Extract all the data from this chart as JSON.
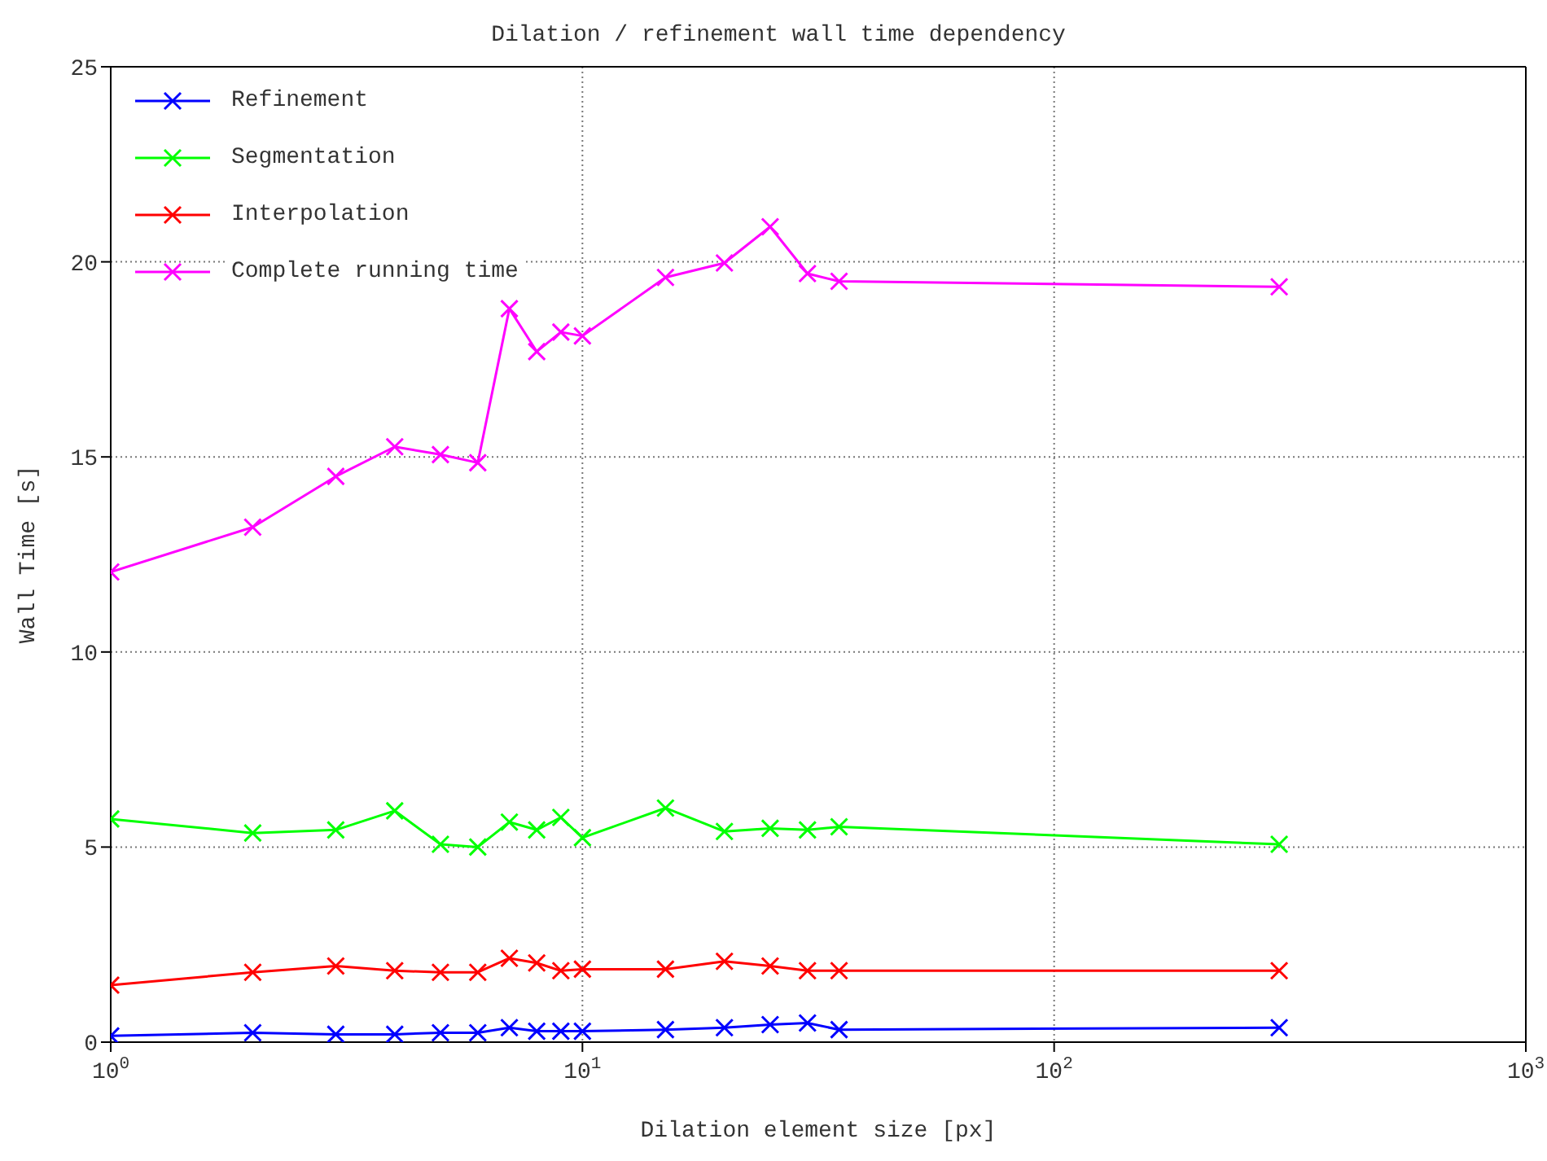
{
  "chart_data": {
    "type": "line",
    "title": "Dilation / refinement wall time dependency",
    "xlabel": "Dilation element size [px]",
    "ylabel": "Wall Time [s]",
    "log": "x",
    "x": [
      1,
      2,
      3,
      4,
      5,
      6,
      7,
      8,
      9,
      10,
      15,
      20,
      25,
      30,
      35,
      300
    ],
    "series": [
      {
        "name": "Refinement",
        "color": "#0000ff",
        "values": [
          0.16,
          0.24,
          0.2,
          0.2,
          0.24,
          0.24,
          0.37,
          0.28,
          0.28,
          0.28,
          0.32,
          0.37,
          0.45,
          0.49,
          0.32,
          0.37
        ]
      },
      {
        "name": "Segmentation",
        "color": "#00ff00",
        "values": [
          5.72,
          5.36,
          5.44,
          5.93,
          5.07,
          5.0,
          5.64,
          5.44,
          5.76,
          5.24,
          6.0,
          5.4,
          5.48,
          5.44,
          5.52,
          5.07
        ]
      },
      {
        "name": "Interpolation",
        "color": "#ff0000",
        "values": [
          1.46,
          1.79,
          1.95,
          1.83,
          1.79,
          1.79,
          2.15,
          2.03,
          1.83,
          1.87,
          1.87,
          2.07,
          1.95,
          1.83,
          1.83,
          1.83
        ]
      },
      {
        "name": "Complete running time",
        "color": "#ff00ff",
        "values": [
          12.05,
          13.2,
          14.5,
          15.26,
          15.06,
          14.85,
          18.8,
          17.7,
          18.2,
          18.1,
          19.6,
          19.97,
          20.9,
          19.7,
          19.5,
          19.36
        ]
      }
    ],
    "xlim": [
      1,
      1000
    ],
    "xticks": [
      {
        "value": 1,
        "label": "10$^{0}$"
      },
      {
        "value": 10,
        "label": "10$^{1}$"
      },
      {
        "value": 100,
        "label": "10$^{2}$"
      },
      {
        "value": 1000,
        "label": "10$^{3}$"
      }
    ],
    "ylim": [
      0,
      25
    ],
    "yticks": [
      0,
      5,
      10,
      15,
      20,
      25
    ],
    "grid": true,
    "legend": "top left",
    "marker": "cross",
    "line_style": "solid"
  }
}
